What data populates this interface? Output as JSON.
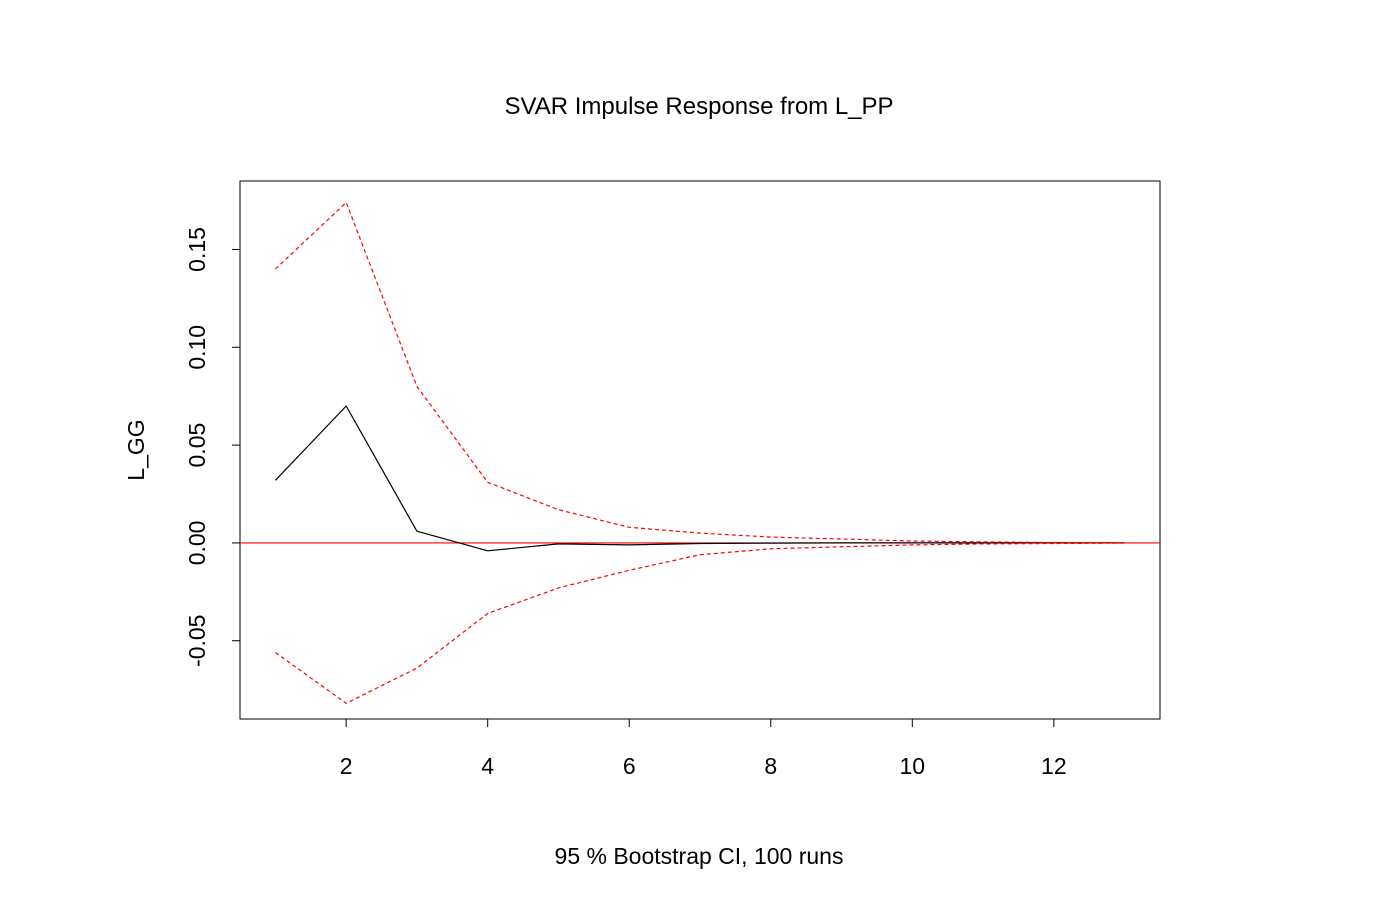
{
  "chart_data": {
    "type": "line",
    "title": "SVAR Impulse Response from L_PP",
    "xlabel": "95 % Bootstrap CI,  100 runs",
    "ylabel": "L_GG",
    "xlim": [
      0.5,
      13.5
    ],
    "ylim": [
      -0.09,
      0.185
    ],
    "x_ticks": [
      2,
      4,
      6,
      8,
      10,
      12
    ],
    "x_tick_labels": [
      "2",
      "4",
      "6",
      "8",
      "10",
      "12"
    ],
    "y_ticks": [
      -0.05,
      0.0,
      0.05,
      0.1,
      0.15
    ],
    "y_tick_labels": [
      "-0.05",
      "0.00",
      "0.05",
      "0.10",
      "0.15"
    ],
    "x": [
      1,
      2,
      3,
      4,
      5,
      6,
      7,
      8,
      9,
      10,
      11,
      12,
      13
    ],
    "series": [
      {
        "values": [
          0.032,
          0.07,
          0.006,
          -0.004,
          -0.0005,
          -0.001,
          -0.0003,
          -0.0001,
          0.0,
          0.0,
          0.0,
          0.0,
          0.0
        ],
        "color": "#000000",
        "style": "solid"
      },
      {
        "values": [
          0.14,
          0.174,
          0.08,
          0.031,
          0.017,
          0.008,
          0.005,
          0.003,
          0.002,
          0.001,
          0.0005,
          0.0002,
          0.0001
        ],
        "color": "#ff0000",
        "style": "dashed"
      },
      {
        "values": [
          -0.056,
          -0.082,
          -0.064,
          -0.036,
          -0.023,
          -0.014,
          -0.006,
          -0.003,
          -0.002,
          -0.001,
          -0.0005,
          -0.0003,
          -0.0001
        ],
        "color": "#ff0000",
        "style": "dashed"
      }
    ],
    "reference_line": {
      "y": 0,
      "color": "#ff0000"
    },
    "grid": false,
    "legend": "none"
  }
}
